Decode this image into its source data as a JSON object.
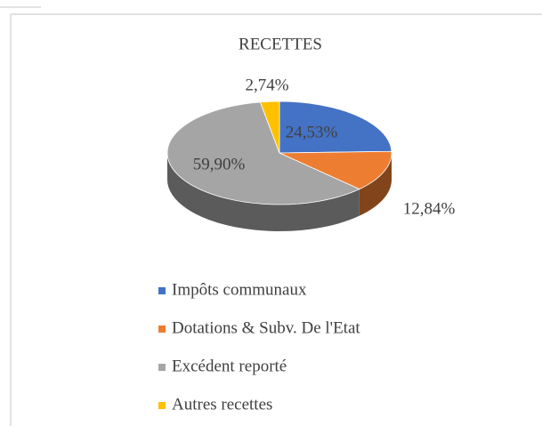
{
  "chart_data": {
    "type": "pie",
    "title": "RECETTES",
    "categories": [
      "Impôts communaux",
      "Dotations & Subv. De l'Etat",
      "Excédent reporté",
      "Autres recettes"
    ],
    "values": [
      24.53,
      12.84,
      59.9,
      2.74
    ],
    "value_labels": [
      "24,53%",
      "12,84%",
      "59,90%",
      "2,74%"
    ],
    "colors": [
      "#4472c4",
      "#ed7d31",
      "#a5a5a5",
      "#ffc000"
    ]
  }
}
